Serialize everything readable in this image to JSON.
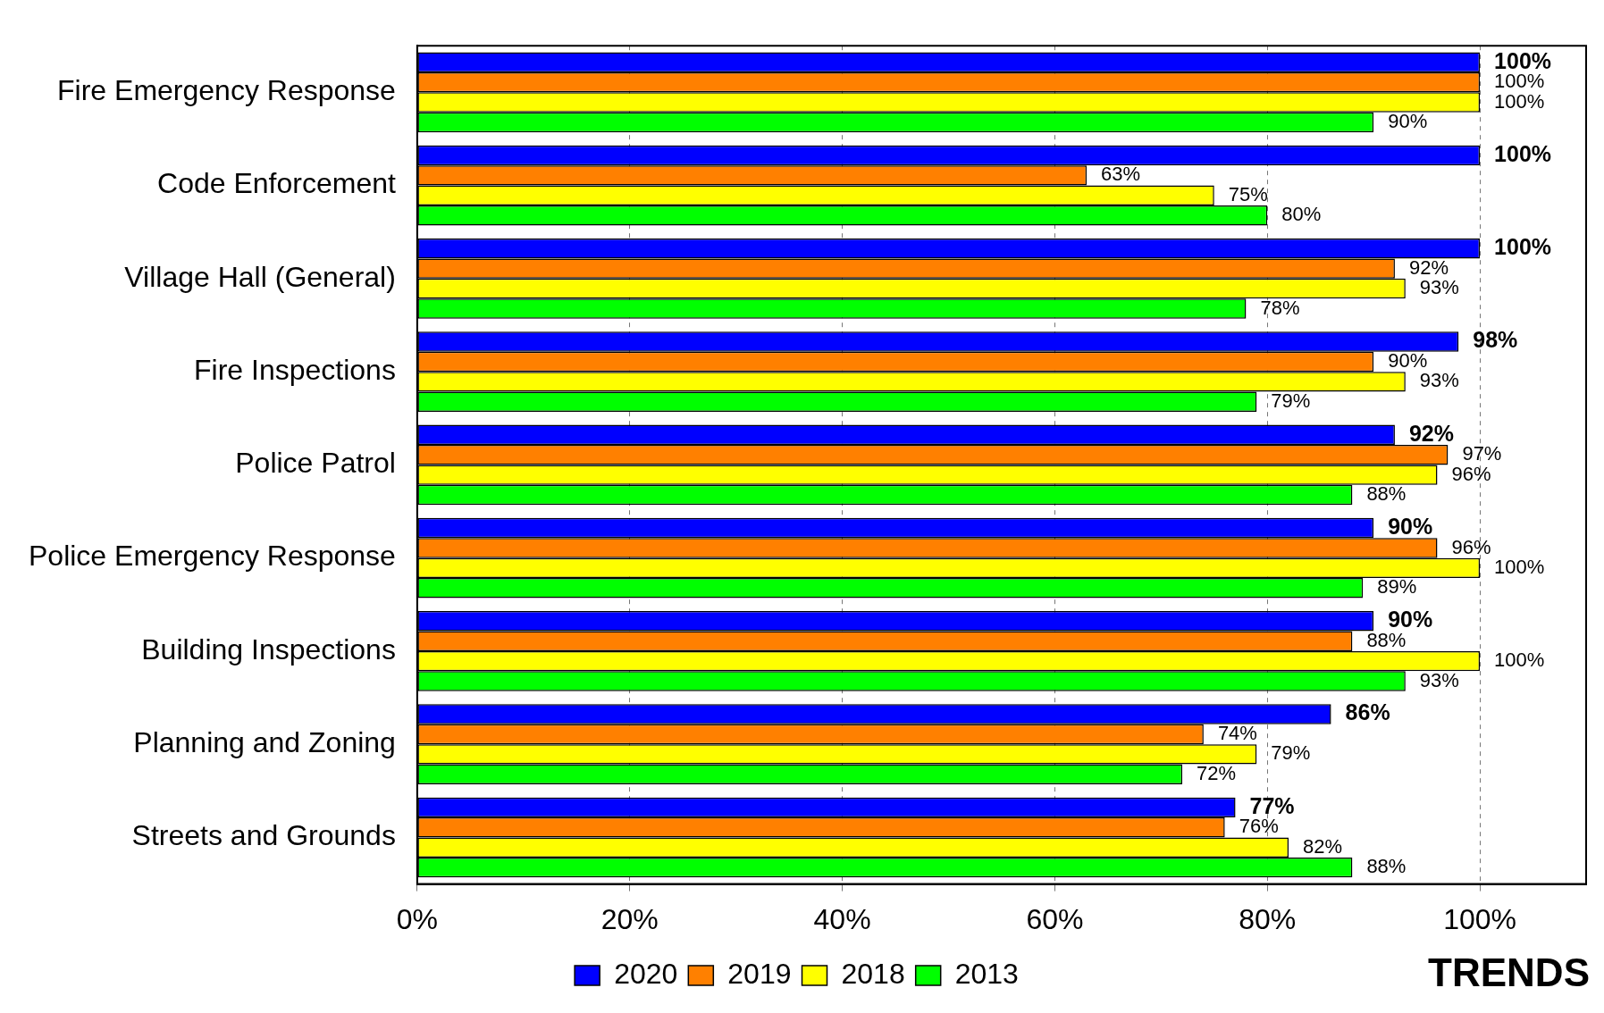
{
  "chart_data": {
    "type": "bar",
    "orientation": "horizontal",
    "categories": [
      "Fire Emergency Response",
      "Code Enforcement",
      "Village Hall (General)",
      "Fire Inspections",
      "Police Patrol",
      "Police Emergency Response",
      "Building Inspections",
      "Planning and Zoning",
      "Streets and Grounds"
    ],
    "series": [
      {
        "name": "2020",
        "color": "#0000ff",
        "values": [
          100,
          100,
          100,
          98,
          92,
          90,
          90,
          86,
          77
        ],
        "value_labels": [
          "100%",
          "100%",
          "100%",
          "98%",
          "92%",
          "90%",
          "90%",
          "86%",
          "77%"
        ]
      },
      {
        "name": "2019",
        "color": "#ff8000",
        "values": [
          100,
          63,
          92,
          90,
          97,
          96,
          88,
          74,
          76
        ],
        "value_labels": [
          "100%",
          "63%",
          "92%",
          "90%",
          "97%",
          "96%",
          "88%",
          "74%",
          "76%"
        ]
      },
      {
        "name": "2018",
        "color": "#ffff00",
        "values": [
          100,
          75,
          93,
          93,
          96,
          100,
          100,
          79,
          82
        ],
        "value_labels": [
          "100%",
          "75%",
          "93%",
          "93%",
          "96%",
          "100%",
          "100%",
          "79%",
          "82%"
        ]
      },
      {
        "name": "2013",
        "color": "#00ff00",
        "values": [
          90,
          80,
          78,
          79,
          88,
          89,
          93,
          72,
          88
        ],
        "value_labels": [
          "90%",
          "80%",
          "78%",
          "79%",
          "88%",
          "89%",
          "93%",
          "72%",
          "88%"
        ]
      }
    ],
    "xlim": [
      0,
      110
    ],
    "xticks": [
      {
        "value": 0,
        "label": "0%"
      },
      {
        "value": 20,
        "label": "20%"
      },
      {
        "value": 40,
        "label": "40%"
      },
      {
        "value": 60,
        "label": "60%"
      },
      {
        "value": 80,
        "label": "80%"
      },
      {
        "value": 100,
        "label": "100%"
      }
    ],
    "grid": "x",
    "legend": "bottom",
    "annotations": [
      "TRENDS"
    ]
  }
}
